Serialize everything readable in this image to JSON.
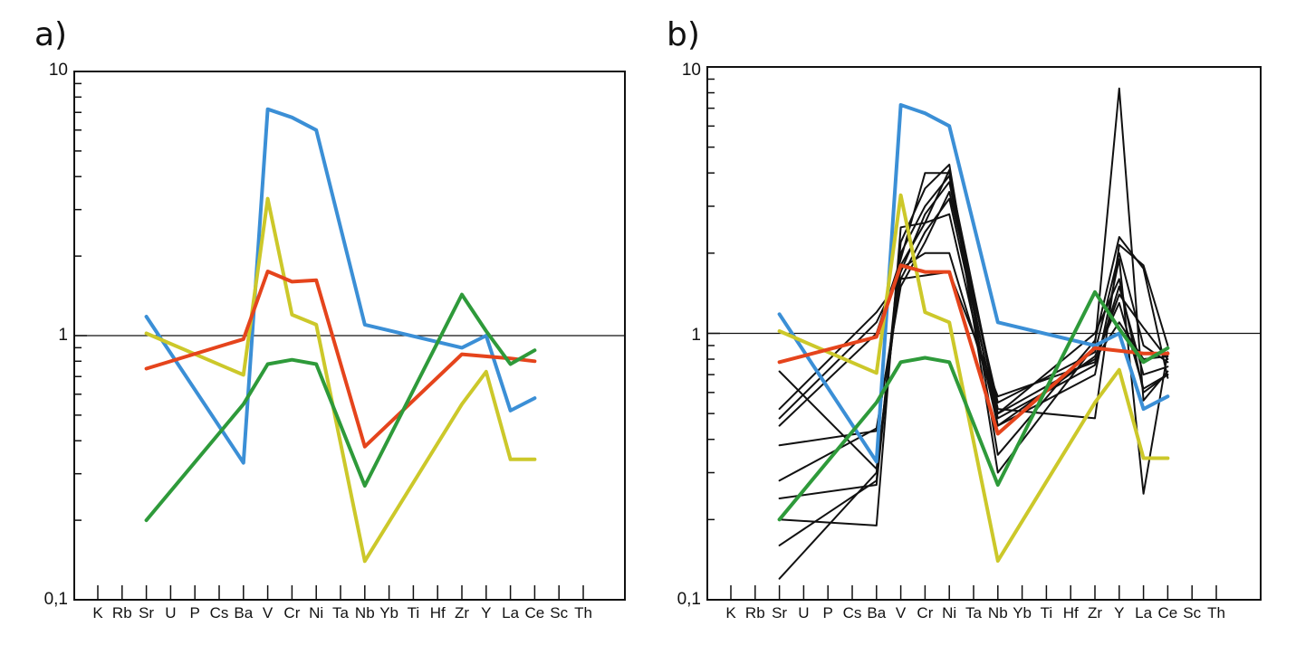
{
  "chart_data": [
    {
      "type": "line",
      "panel_label": "a)",
      "title": "",
      "xlabel": "",
      "ylabel": "",
      "log_y": true,
      "ylim": [
        0.1,
        10
      ],
      "yticks": [
        "0,1",
        "1",
        "10"
      ],
      "reference_line_y": 1,
      "grid": false,
      "categories": [
        "K",
        "Rb",
        "Sr",
        "U",
        "P",
        "Cs",
        "Ba",
        "V",
        "Cr",
        "Ni",
        "Ta",
        "Nb",
        "Yb",
        "Ti",
        "Hf",
        "Zr",
        "Y",
        "La",
        "Ce",
        "Sc",
        "Th"
      ],
      "series": [
        {
          "color": "#3b8fd6",
          "points": [
            [
              "Sr",
              1.18
            ],
            [
              "Ba",
              0.33
            ],
            [
              "V",
              7.2
            ],
            [
              "Cr",
              6.7
            ],
            [
              "Ni",
              6.0
            ],
            [
              "Nb",
              1.1
            ],
            [
              "Zr",
              0.9
            ],
            [
              "Y",
              1.0
            ],
            [
              "La",
              0.52
            ],
            [
              "Ce",
              0.58
            ]
          ]
        },
        {
          "color": "#ccc82a",
          "points": [
            [
              "Sr",
              1.02
            ],
            [
              "Ba",
              0.71
            ],
            [
              "V",
              3.3
            ],
            [
              "Cr",
              1.2
            ],
            [
              "Ni",
              1.1
            ],
            [
              "Nb",
              0.14
            ],
            [
              "Zr",
              0.55
            ],
            [
              "Y",
              0.73
            ],
            [
              "La",
              0.34
            ],
            [
              "Ce",
              0.34
            ]
          ]
        },
        {
          "color": "#e5441c",
          "points": [
            [
              "Sr",
              0.75
            ],
            [
              "Ba",
              0.97
            ],
            [
              "V",
              1.75
            ],
            [
              "Cr",
              1.6
            ],
            [
              "Ni",
              1.62
            ],
            [
              "Nb",
              0.38
            ],
            [
              "Zr",
              0.85
            ],
            [
              "La",
              0.82
            ],
            [
              "Ce",
              0.8
            ]
          ]
        },
        {
          "color": "#2e9a3a",
          "points": [
            [
              "Sr",
              0.2
            ],
            [
              "Ba",
              0.55
            ],
            [
              "V",
              0.78
            ],
            [
              "Cr",
              0.81
            ],
            [
              "Ni",
              0.78
            ],
            [
              "Nb",
              0.27
            ],
            [
              "Zr",
              1.43
            ],
            [
              "Y",
              1.04
            ],
            [
              "La",
              0.78
            ],
            [
              "Ce",
              0.88
            ]
          ]
        }
      ]
    },
    {
      "type": "line",
      "panel_label": "b)",
      "title": "",
      "xlabel": "",
      "ylabel": "",
      "log_y": true,
      "ylim": [
        0.1,
        10
      ],
      "yticks": [
        "0,1",
        "1",
        "10"
      ],
      "reference_line_y": 1,
      "grid": false,
      "categories": [
        "K",
        "Rb",
        "Sr",
        "U",
        "P",
        "Cs",
        "Ba",
        "V",
        "Cr",
        "Ni",
        "Ta",
        "Nb",
        "Yb",
        "Ti",
        "Hf",
        "Zr",
        "Y",
        "La",
        "Ce",
        "Sc",
        "Th"
      ],
      "series": [
        {
          "color": "#3b8fd6",
          "points": [
            [
              "Sr",
              1.18
            ],
            [
              "Ba",
              0.33
            ],
            [
              "V",
              7.2
            ],
            [
              "Cr",
              6.7
            ],
            [
              "Ni",
              6.0
            ],
            [
              "Nb",
              1.1
            ],
            [
              "Zr",
              0.9
            ],
            [
              "Y",
              1.0
            ],
            [
              "La",
              0.52
            ],
            [
              "Ce",
              0.58
            ]
          ]
        },
        {
          "color": "#ccc82a",
          "points": [
            [
              "Sr",
              1.02
            ],
            [
              "Ba",
              0.71
            ],
            [
              "V",
              3.3
            ],
            [
              "Cr",
              1.2
            ],
            [
              "Ni",
              1.1
            ],
            [
              "Nb",
              0.14
            ],
            [
              "Zr",
              0.55
            ],
            [
              "Y",
              0.73
            ],
            [
              "La",
              0.34
            ],
            [
              "Ce",
              0.34
            ]
          ]
        },
        {
          "color": "#e5441c",
          "points": [
            [
              "Sr",
              0.78
            ],
            [
              "Ba",
              0.97
            ],
            [
              "V",
              1.8
            ],
            [
              "Cr",
              1.7
            ],
            [
              "Ni",
              1.7
            ],
            [
              "Nb",
              0.42
            ],
            [
              "Zr",
              0.88
            ],
            [
              "La",
              0.84
            ],
            [
              "Ce",
              0.84
            ]
          ]
        },
        {
          "color": "#2e9a3a",
          "points": [
            [
              "Sr",
              0.2
            ],
            [
              "Ba",
              0.55
            ],
            [
              "V",
              0.78
            ],
            [
              "Cr",
              0.81
            ],
            [
              "Ni",
              0.78
            ],
            [
              "Nb",
              0.27
            ],
            [
              "Zr",
              1.43
            ],
            [
              "Y",
              1.04
            ],
            [
              "La",
              0.78
            ],
            [
              "Ce",
              0.88
            ]
          ]
        },
        {
          "color": "#111111",
          "points": [
            [
              "Sr",
              0.12
            ],
            [
              "Ba",
              0.3
            ],
            [
              "V",
              1.8
            ],
            [
              "Cr",
              2.6
            ],
            [
              "Ni",
              4.1
            ],
            [
              "Nb",
              0.3
            ],
            [
              "Zr",
              0.9
            ],
            [
              "Y",
              8.3
            ],
            [
              "La",
              0.56
            ],
            [
              "Ce",
              0.72
            ]
          ]
        },
        {
          "color": "#111111",
          "points": [
            [
              "Sr",
              0.16
            ],
            [
              "Ba",
              0.28
            ],
            [
              "V",
              2.2
            ],
            [
              "Cr",
              3.5
            ],
            [
              "Ni",
              4.3
            ],
            [
              "Nb",
              0.35
            ],
            [
              "Zr",
              0.94
            ],
            [
              "Y",
              2.3
            ],
            [
              "La",
              1.75
            ],
            [
              "Ce",
              0.68
            ]
          ]
        },
        {
          "color": "#111111",
          "points": [
            [
              "Sr",
              0.2
            ],
            [
              "Ba",
              0.19
            ],
            [
              "V",
              2.5
            ],
            [
              "Cr",
              2.6
            ],
            [
              "Ni",
              2.8
            ],
            [
              "Nb",
              0.45
            ],
            [
              "Zr",
              0.7
            ],
            [
              "Y",
              1.9
            ],
            [
              "La",
              0.25
            ],
            [
              "Ce",
              0.85
            ]
          ]
        },
        {
          "color": "#111111",
          "points": [
            [
              "Sr",
              0.24
            ],
            [
              "Ba",
              0.27
            ],
            [
              "V",
              2.0
            ],
            [
              "Cr",
              3.0
            ],
            [
              "Ni",
              3.9
            ],
            [
              "Nb",
              0.5
            ],
            [
              "Zr",
              1.0
            ],
            [
              "Y",
              1.6
            ],
            [
              "La",
              0.6
            ],
            [
              "Ce",
              0.7
            ]
          ]
        },
        {
          "color": "#111111",
          "points": [
            [
              "Sr",
              0.28
            ],
            [
              "Ba",
              0.44
            ],
            [
              "V",
              1.5
            ],
            [
              "Cr",
              2.2
            ],
            [
              "Ni",
              3.4
            ],
            [
              "Nb",
              0.55
            ],
            [
              "Zr",
              0.85
            ],
            [
              "Y",
              2.0
            ],
            [
              "La",
              0.9
            ],
            [
              "Ce",
              0.78
            ]
          ]
        },
        {
          "color": "#111111",
          "points": [
            [
              "Sr",
              0.38
            ],
            [
              "Ba",
              0.43
            ],
            [
              "V",
              1.6
            ],
            [
              "Cr",
              1.65
            ],
            [
              "Ni",
              1.7
            ],
            [
              "Nb",
              0.58
            ],
            [
              "Zr",
              0.78
            ],
            [
              "Y",
              1.4
            ],
            [
              "La",
              1.05
            ],
            [
              "Ce",
              0.8
            ]
          ]
        },
        {
          "color": "#111111",
          "points": [
            [
              "Sr",
              0.45
            ],
            [
              "Ba",
              1.0
            ],
            [
              "V",
              1.9
            ],
            [
              "Cr",
              4.0
            ],
            [
              "Ni",
              4.0
            ],
            [
              "Nb",
              0.52
            ],
            [
              "Zr",
              0.48
            ],
            [
              "Y",
              2.15
            ],
            [
              "La",
              1.8
            ],
            [
              "Ce",
              0.9
            ]
          ]
        },
        {
          "color": "#111111",
          "points": [
            [
              "Sr",
              0.48
            ],
            [
              "Ba",
              1.1
            ],
            [
              "V",
              1.7
            ],
            [
              "Cr",
              2.8
            ],
            [
              "Ni",
              3.7
            ],
            [
              "Nb",
              0.45
            ],
            [
              "Zr",
              0.82
            ],
            [
              "Y",
              1.3
            ],
            [
              "La",
              0.62
            ],
            [
              "Ce",
              0.7
            ]
          ]
        },
        {
          "color": "#111111",
          "points": [
            [
              "Sr",
              0.52
            ],
            [
              "Ba",
              1.2
            ],
            [
              "V",
              1.6
            ],
            [
              "Cr",
              2.4
            ],
            [
              "Ni",
              3.2
            ],
            [
              "Nb",
              0.48
            ],
            [
              "Zr",
              0.76
            ],
            [
              "Y",
              1.5
            ],
            [
              "La",
              0.7
            ],
            [
              "Ce",
              0.75
            ]
          ]
        },
        {
          "color": "#111111",
          "points": [
            [
              "Sr",
              0.72
            ],
            [
              "Ba",
              0.31
            ],
            [
              "V",
              1.75
            ],
            [
              "Cr",
              2.0
            ],
            [
              "Ni",
              2.0
            ],
            [
              "Nb",
              0.5
            ],
            [
              "Zr",
              0.8
            ],
            [
              "Y",
              1.1
            ],
            [
              "La",
              0.8
            ],
            [
              "Ce",
              0.82
            ]
          ]
        }
      ]
    }
  ]
}
